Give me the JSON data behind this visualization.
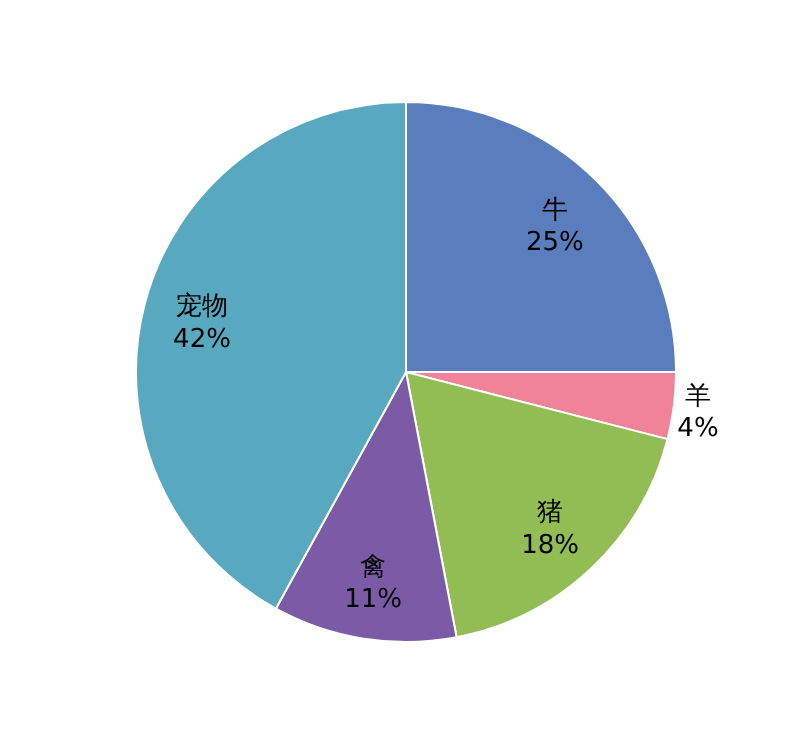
{
  "chart_data": {
    "type": "pie",
    "categories": [
      "牛",
      "羊",
      "猪",
      "禽",
      "宠物"
    ],
    "values": [
      25,
      4,
      18,
      11,
      42
    ],
    "value_labels": [
      "25%",
      "4%",
      "18%",
      "11%",
      "42%"
    ],
    "colors": [
      "#5a7dbd",
      "#f08398",
      "#92bd55",
      "#7b5aa6",
      "#58a8c0"
    ]
  }
}
